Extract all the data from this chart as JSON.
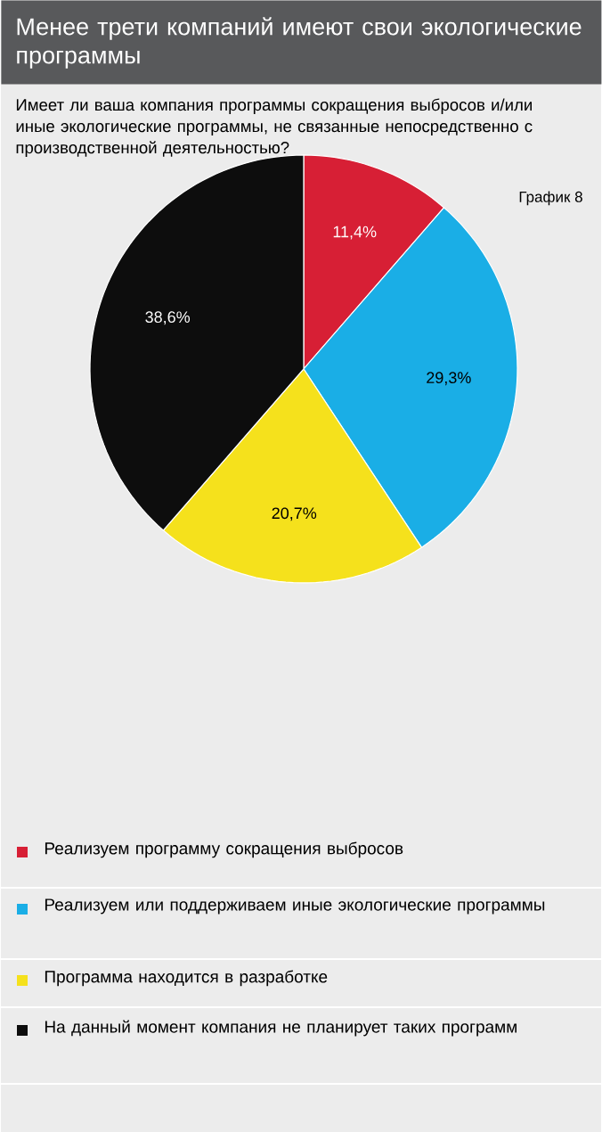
{
  "chart_data": {
    "type": "pie",
    "title": "Менее трети компаний имеют свои экологические программы",
    "subtitle": "Имеет ли ваша компания программы сокращения выбросов и/или иные экологические программы, не связанные непосредственно с производственной деятельностью?",
    "annotations": [
      "График 8"
    ],
    "categories": [
      "Реализуем программу сокращения выбросов",
      "Реализуем или поддерживаем иные экологические программы",
      "Программа находится в разработке",
      "На данный момент компания не планирует таких программ"
    ],
    "values": [
      11.4,
      29.3,
      20.7,
      38.6
    ],
    "value_labels": [
      "11,4%",
      "29,3%",
      "20,7%",
      "38,6%"
    ],
    "colors": [
      "#d71f35",
      "#1aaee6",
      "#f5e11c",
      "#0d0d0d"
    ],
    "legend": "bottom"
  }
}
